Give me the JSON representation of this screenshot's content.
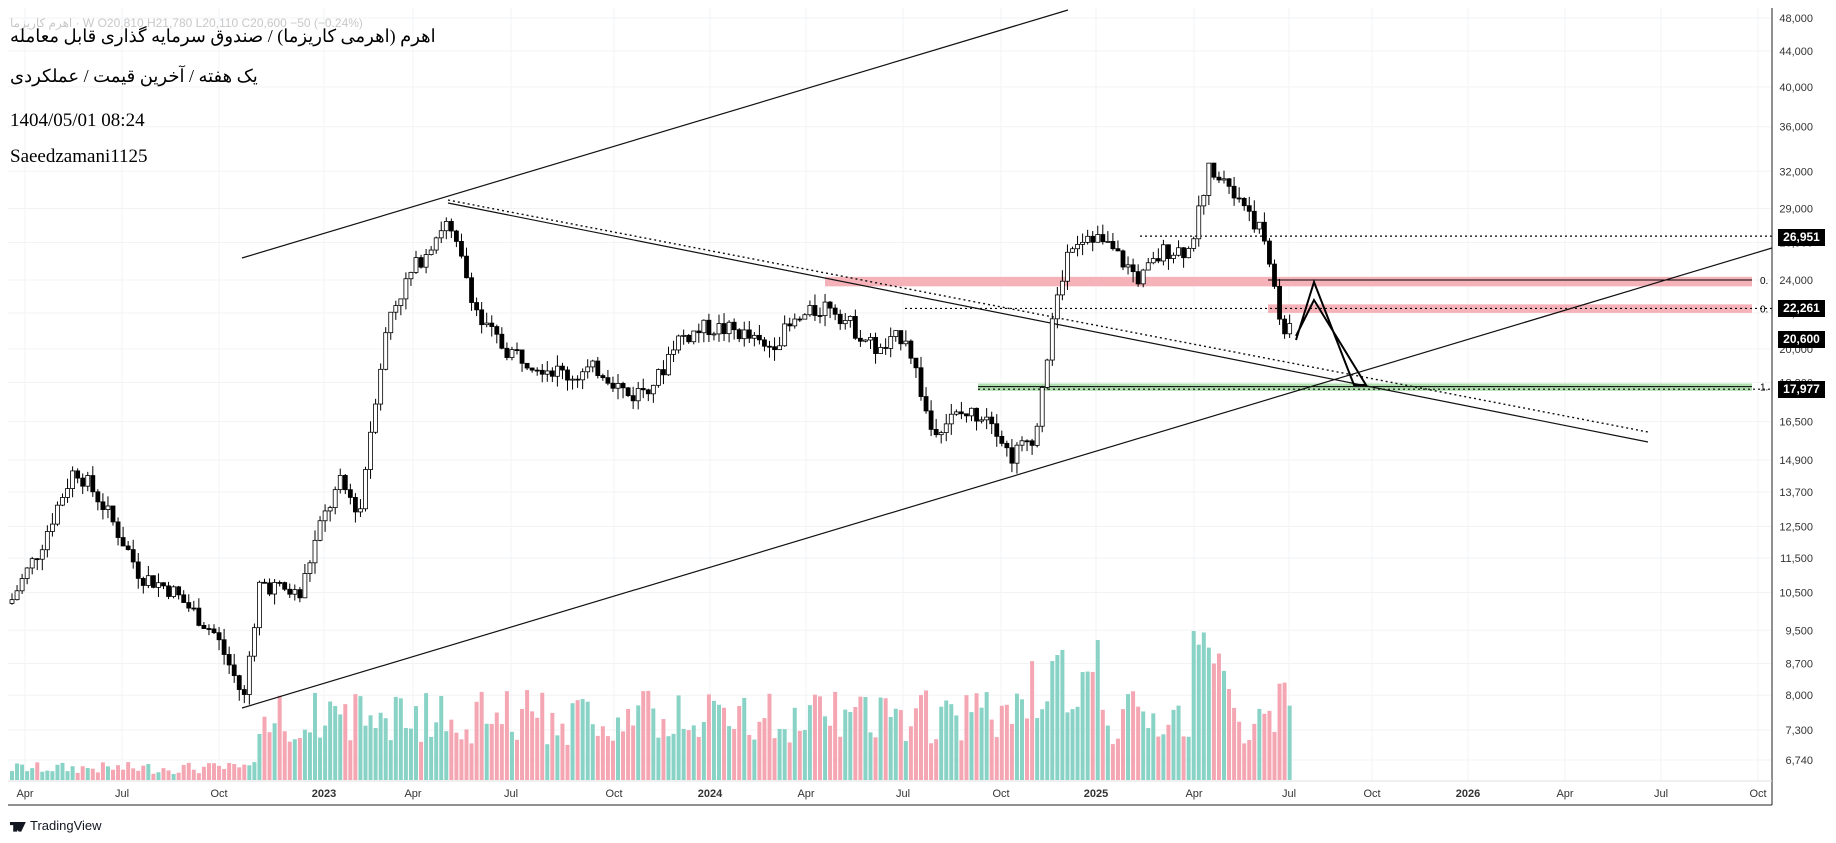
{
  "header": {
    "ohlc_legend": "اهرم کاریزما · W  O20,810  H21,780  L20,110  C20,600  −50 (−0.24%)",
    "title": "اهرم (اهرمی کاریزما) / صندوق سرمایه گذاری قابل معامله",
    "subtitle": "یک هفته / آخرین قیمت / عملکردی",
    "date": "1404/05/01 08:24",
    "author": "Saeedzamani1125"
  },
  "branding": {
    "logo_text": "TradingView"
  },
  "colors": {
    "up": "#ffffff",
    "down": "#000000",
    "candle_border": "#000000",
    "vol_up": "#89d3c6",
    "vol_down": "#f4a6b2",
    "red_zone": "#f5a5ad",
    "green_zone": "#a8dba8"
  },
  "chart_data": {
    "type": "candlestick",
    "y_scale": "log",
    "ylim": [
      6300,
      48000
    ],
    "y_ticks": [
      "48,000",
      "44,000",
      "40,000",
      "36,000",
      "32,000",
      "29,000",
      "26,500",
      "24,000",
      "22,000",
      "20,000",
      "18,300",
      "16,500",
      "14,900",
      "13,700",
      "12,500",
      "11,500",
      "10,500",
      "9,500",
      "8,700",
      "8,000",
      "7,300",
      "6,740"
    ],
    "x_ticks": [
      "Apr",
      "Jul",
      "Oct",
      "2023",
      "Apr",
      "Jul",
      "Oct",
      "2024",
      "Apr",
      "Jul",
      "Oct",
      "2025",
      "Apr",
      "Jul",
      "Oct",
      "2026",
      "Apr",
      "Jul",
      "Oct"
    ],
    "price_labels": [
      "26,951",
      "22,261",
      "20,600",
      "17,977"
    ],
    "level_labels": [
      "0.",
      "0.",
      "1."
    ],
    "levels": {
      "red_top": 24000,
      "red_mid": 22261,
      "green": 17977,
      "dotted_upper": 26951
    }
  }
}
